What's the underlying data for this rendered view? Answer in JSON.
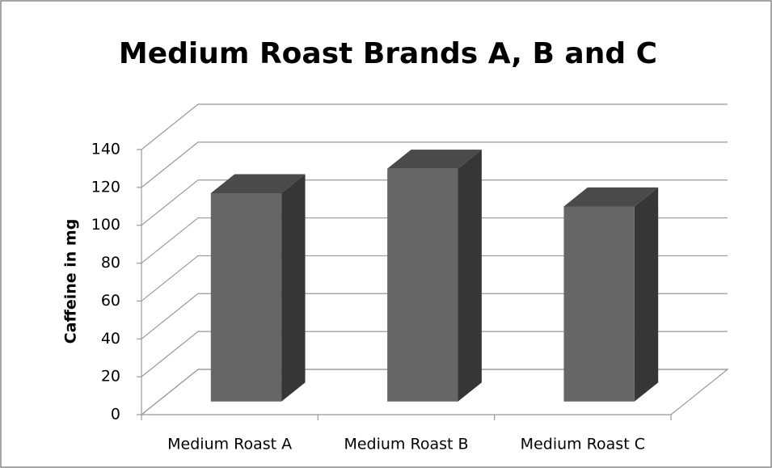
{
  "chart_data": {
    "type": "bar3d",
    "title": "Medium Roast Brands A, B and C",
    "y_label": "Caffeine in mg",
    "categories": [
      "Medium Roast A",
      "Medium Roast B",
      "Medium Roast C"
    ],
    "values": [
      110,
      123,
      103
    ],
    "color": "#666666",
    "ylim": [
      0,
      140
    ],
    "yticks": [
      0,
      20,
      40,
      60,
      80,
      100,
      120,
      140
    ],
    "grid": true
  }
}
